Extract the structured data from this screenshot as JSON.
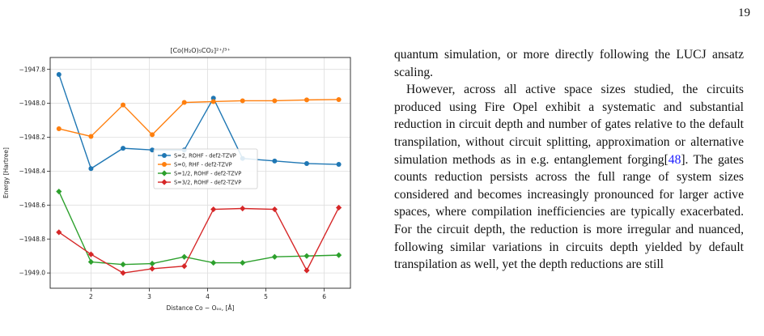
{
  "page": {
    "number": "19"
  },
  "figure": {
    "chart_data": {
      "type": "line",
      "title": "[Co(H₂O)₅CO₂]²⁺/³⁺",
      "xlabel": "Distance Co − Oₒₒ, [Å]",
      "ylabel": "Energy [Hartree]",
      "xlim": [
        1.3,
        6.45
      ],
      "ylim": [
        -1949.09,
        -1947.73
      ],
      "x_ticks": [
        2,
        3,
        4,
        5,
        6
      ],
      "y_ticks": [
        -1947.8,
        -1948.0,
        -1948.2,
        -1948.4,
        -1948.6,
        -1948.8,
        -1949.0
      ],
      "x_tick_labels": [
        "2",
        "3",
        "4",
        "5",
        "6"
      ],
      "y_tick_labels": [
        "−1947.8",
        "−1948.0",
        "−1948.2",
        "−1948.4",
        "−1948.6",
        "−1948.8",
        "−1949.0"
      ],
      "grid": true,
      "legend_position": "center-right",
      "x": [
        1.45,
        2.0,
        2.55,
        3.05,
        3.6,
        4.1,
        4.6,
        5.15,
        5.7,
        6.25
      ],
      "series": [
        {
          "name": "S=2, ROHF - def2-TZVP",
          "color": "#1f77b4",
          "marker": "circle",
          "values": [
            -1947.83,
            -1948.385,
            -1948.265,
            -1948.275,
            -1948.275,
            -1947.97,
            -1948.325,
            -1948.34,
            -1948.355,
            -1948.36
          ]
        },
        {
          "name": "S=0, RHF - def2-TZVP",
          "color": "#ff7f0e",
          "marker": "circle",
          "values": [
            -1948.15,
            -1948.195,
            -1948.01,
            -1948.185,
            -1947.995,
            -1947.99,
            -1947.985,
            -1947.985,
            -1947.98,
            -1947.978
          ]
        },
        {
          "name": "S=1/2, ROHF - def2-TZVP",
          "color": "#2ca02c",
          "marker": "diamond",
          "values": [
            -1948.52,
            -1948.935,
            -1948.95,
            -1948.945,
            -1948.905,
            -1948.94,
            -1948.94,
            -1948.905,
            -1948.9,
            -1948.895
          ]
        },
        {
          "name": "S=3/2, ROHF - def2-TZVP",
          "color": "#d62728",
          "marker": "diamond",
          "values": [
            -1948.76,
            -1948.89,
            -1949.0,
            -1948.975,
            -1948.96,
            -1948.625,
            -1948.62,
            -1948.625,
            -1948.985,
            -1948.615
          ]
        }
      ]
    }
  },
  "text": {
    "p1": "quantum simulation, or more directly following the LUCJ ansatz scaling.",
    "p2_before_cite": "However, across all active space sizes studied, the circuits produced using Fire Opel exhibit a systematic and substantial reduction in circuit depth and number of gates relative to the default transpilation, without circuit splitting, approximation or alternative simulation methods as in e.g. entanglement forging[",
    "p2_cite": "48",
    "p2_after_cite": "]. The gates counts reduction persists across the full range of system sizes considered and becomes increasingly pronounced for larger active spaces, where compilation inefficiencies are typically exacerbated. For the circuit depth, the reduction is more irregular and nuanced, following similar variations in circuits depth yielded by default transpilation as well, yet the depth reductions are still"
  }
}
